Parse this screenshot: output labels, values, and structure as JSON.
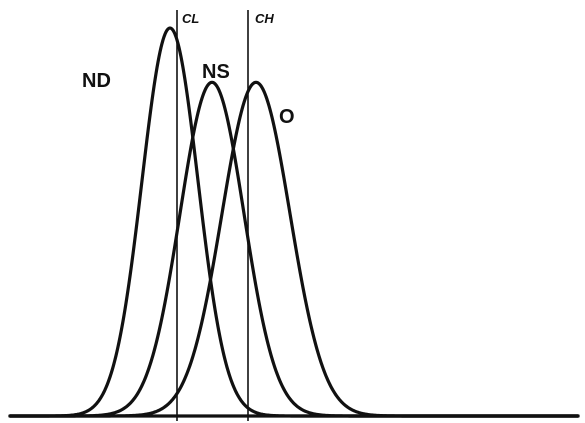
{
  "chart_data": {
    "type": "line",
    "curves": [
      {
        "label": "ND",
        "mean": 170,
        "sd": 28,
        "peak": 1.0
      },
      {
        "label": "NS",
        "mean": 212,
        "sd": 32,
        "peak": 0.86
      },
      {
        "label": "O",
        "mean": 256,
        "sd": 34,
        "peak": 0.86
      }
    ],
    "cutoffs": [
      {
        "label": "CL",
        "x": 177
      },
      {
        "label": "CH",
        "x": 248
      }
    ],
    "xlim": [
      10,
      578
    ],
    "baseline": true
  }
}
